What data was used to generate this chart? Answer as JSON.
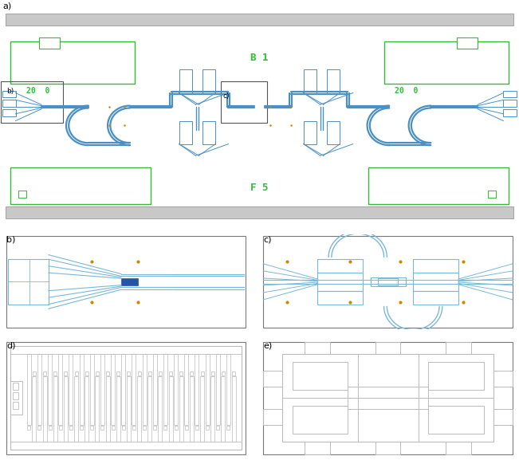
{
  "bg_color": "#ffffff",
  "blue_main": "#4a90c4",
  "blue_light": "#7ab8d8",
  "blue_fill": "#2255aa",
  "green_label": "#33bb33",
  "gray_line": "#999999",
  "gray_light": "#bbbbbb",
  "orange_dot": "#cc8800",
  "panel_a_label": "a)",
  "panel_b_label": "b)",
  "panel_c_label": "c)",
  "panel_d_label": "d)",
  "panel_e_label": "e)",
  "text_b1": "B 1",
  "text_f5": "F 5",
  "text_20_0_l": "20  0",
  "text_20_0_r": "20  0"
}
